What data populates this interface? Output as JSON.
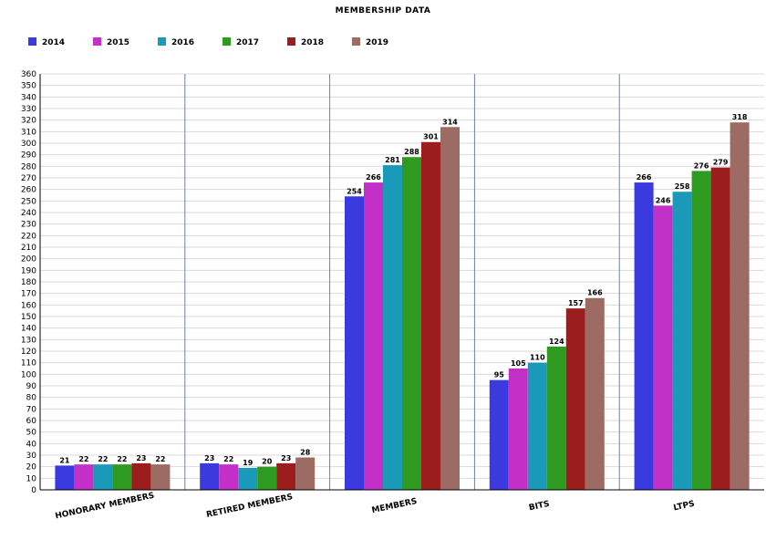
{
  "chart_data": {
    "type": "bar",
    "title": "MEMBERSHIP DATA",
    "xlabel": "",
    "ylabel": "",
    "ylim": [
      0,
      360
    ],
    "ytick_step": 10,
    "grid": true,
    "legend_position": "top-left",
    "categories": [
      "HONORARY MEMBERS",
      "RETIRED MEMBERS",
      "MEMBERS",
      "BITS",
      "LTPS"
    ],
    "series": [
      {
        "name": "2014",
        "color": "#3a3adf",
        "values": [
          21,
          23,
          254,
          95,
          266
        ],
        "labels": [
          "21",
          "23",
          "254",
          "95",
          "266"
        ]
      },
      {
        "name": "2015",
        "color": "#c330c8",
        "values": [
          22,
          22,
          266,
          105,
          246
        ],
        "labels": [
          "22",
          "22",
          "266",
          "105",
          "246"
        ]
      },
      {
        "name": "2016",
        "color": "#1a99b8",
        "values": [
          22,
          19,
          281,
          110,
          258
        ],
        "labels": [
          "22",
          "19",
          "281",
          "110",
          "258"
        ]
      },
      {
        "name": "2017",
        "color": "#2e9a1f",
        "values": [
          22,
          20,
          288,
          124,
          276
        ],
        "labels": [
          "22",
          "20",
          "288",
          "124",
          "276"
        ]
      },
      {
        "name": "2018",
        "color": "#9b1d1d",
        "values": [
          23,
          23,
          301,
          157,
          279
        ],
        "labels": [
          "23",
          "23",
          "301",
          "157",
          "279"
        ]
      },
      {
        "name": "2019",
        "color": "#9c6b64",
        "values": [
          22,
          28,
          314,
          166,
          318
        ],
        "labels": [
          "22",
          "28",
          "314",
          "166",
          "318"
        ]
      }
    ]
  }
}
